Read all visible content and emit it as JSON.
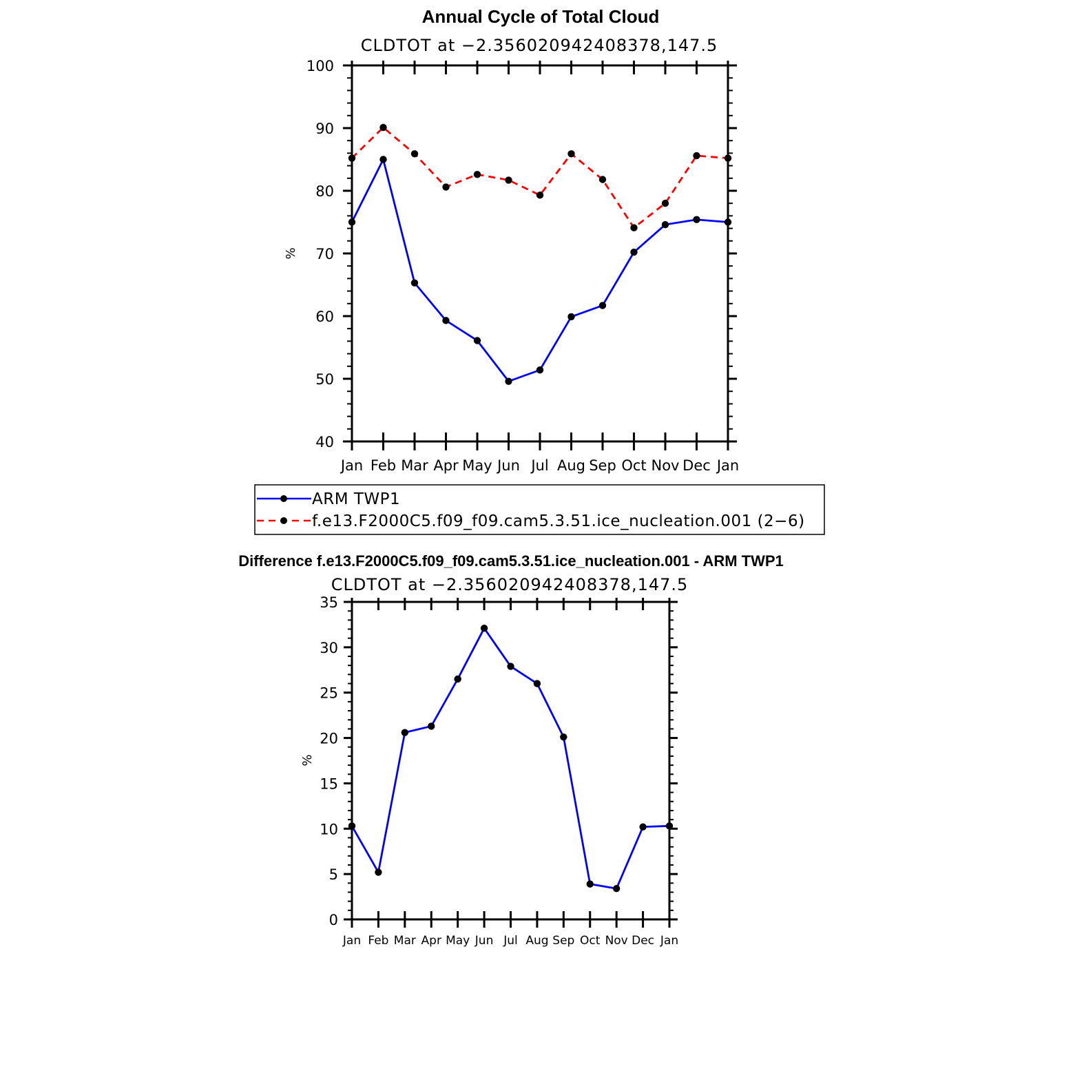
{
  "chart_data": [
    {
      "type": "line",
      "title": "Annual Cycle of Total Cloud",
      "subtitle": "CLDTOT at −2.356020942408378,147.5",
      "ylabel": "%",
      "ylim": [
        40,
        100
      ],
      "yticks": [
        40,
        50,
        60,
        70,
        80,
        90,
        100
      ],
      "categories": [
        "Jan",
        "Feb",
        "Mar",
        "Apr",
        "May",
        "Jun",
        "Jul",
        "Aug",
        "Sep",
        "Oct",
        "Nov",
        "Dec",
        "Jan"
      ],
      "series": [
        {
          "name": "ARM TWP1",
          "color": "#0000ff",
          "dash": "solid",
          "values": [
            75.0,
            85.0,
            65.3,
            59.3,
            56.1,
            49.6,
            51.4,
            59.9,
            61.7,
            70.2,
            74.6,
            75.4,
            75.0
          ]
        },
        {
          "name": "f.e13.F2000C5.f09_f09.cam5.3.51.ice_nucleation.001 (2−6)",
          "color": "#ff0000",
          "dash": "dashed",
          "values": [
            85.2,
            90.1,
            85.9,
            80.6,
            82.6,
            81.7,
            79.3,
            85.9,
            81.8,
            74.1,
            78.0,
            85.6,
            85.2
          ]
        }
      ],
      "legend_position": "below"
    },
    {
      "type": "line",
      "title": "Difference f.e13.F2000C5.f09_f09.cam5.3.51.ice_nucleation.001 - ARM TWP1",
      "subtitle": "CLDTOT at −2.356020942408378,147.5",
      "ylabel": "%",
      "ylim": [
        0,
        35
      ],
      "yticks": [
        0,
        5,
        10,
        15,
        20,
        25,
        30,
        35
      ],
      "categories": [
        "Jan",
        "Feb",
        "Mar",
        "Apr",
        "May",
        "Jun",
        "Jul",
        "Aug",
        "Sep",
        "Oct",
        "Nov",
        "Dec",
        "Jan"
      ],
      "series": [
        {
          "color": "#0000ff",
          "dash": "solid",
          "values": [
            10.3,
            5.2,
            20.6,
            21.3,
            26.5,
            32.1,
            27.9,
            26.0,
            20.1,
            3.9,
            3.4,
            10.2,
            10.3
          ]
        }
      ]
    }
  ]
}
